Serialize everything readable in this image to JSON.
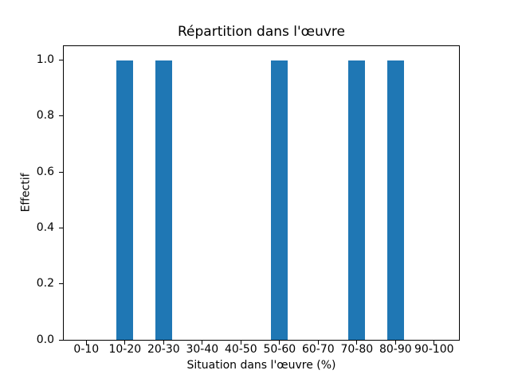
{
  "figure": {
    "background": "#ffffff"
  },
  "chart_data": {
    "type": "bar",
    "title": "Répartition dans l'œuvre",
    "xlabel": "Situation dans l'œuvre (%)",
    "ylabel": "Effectif",
    "categories": [
      "0-10",
      "10-20",
      "20-30",
      "30-40",
      "40-50",
      "50-60",
      "60-70",
      "70-80",
      "80-90",
      "90-100"
    ],
    "values": [
      0,
      1,
      1,
      0,
      0,
      1,
      0,
      1,
      1,
      0
    ],
    "ylim": [
      0,
      1.05
    ],
    "yticks": [
      0,
      0.2,
      0.4,
      0.6,
      0.8,
      1.0
    ],
    "ytick_labels": [
      "0.0",
      "0.2",
      "0.4",
      "0.6",
      "0.8",
      "1.0"
    ],
    "bar_color": "#1f77b4",
    "axis_color": "#000000",
    "grid": false,
    "legend": "none"
  }
}
